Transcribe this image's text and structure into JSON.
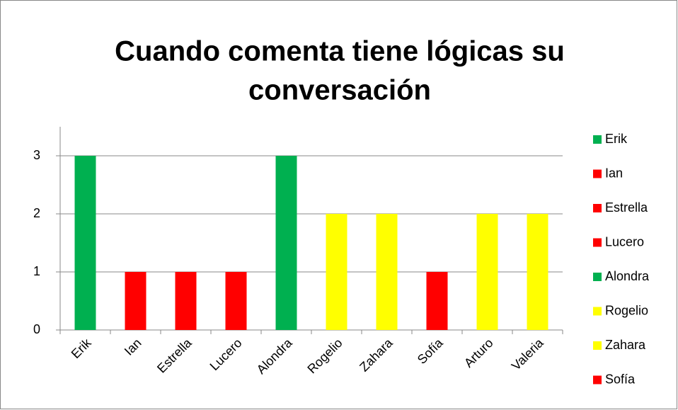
{
  "chart_data": {
    "type": "bar",
    "title": [
      "Cuando comenta tiene lógicas su",
      "conversación"
    ],
    "categories": [
      "Erik",
      "Ian",
      "Estrella",
      "Lucero",
      "Alondra",
      "Rogelio",
      "Zahara",
      "Sofía",
      "Arturo",
      "Valeria"
    ],
    "values": [
      3,
      1,
      1,
      1,
      3,
      2,
      2,
      1,
      2,
      2
    ],
    "colors": [
      "#00b050",
      "#ff0000",
      "#ff0000",
      "#ff0000",
      "#00b050",
      "#ffff00",
      "#ffff00",
      "#ff0000",
      "#ffff00",
      "#ffff00"
    ],
    "ylim": [
      0,
      3.5
    ],
    "yticks": [
      0,
      1,
      2,
      3
    ],
    "grid": true,
    "legend": "right"
  }
}
